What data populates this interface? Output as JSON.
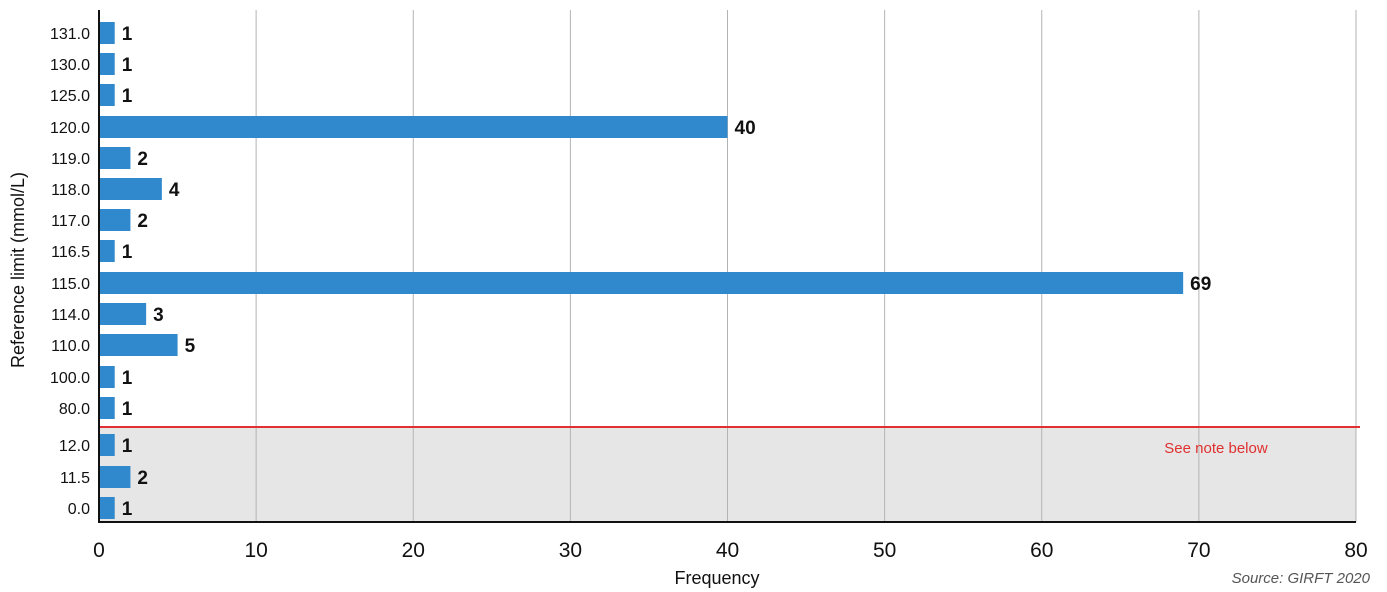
{
  "chart_data": {
    "type": "bar",
    "orientation": "horizontal",
    "xlabel": "Frequency",
    "ylabel": "Reference limit (mmol/L)",
    "xlim": [
      0,
      80
    ],
    "x_ticks": [
      0,
      10,
      20,
      30,
      40,
      50,
      60,
      70,
      80
    ],
    "grid": "vertical",
    "categories": [
      "131.0",
      "130.0",
      "125.0",
      "120.0",
      "119.0",
      "118.0",
      "117.0",
      "116.5",
      "115.0",
      "114.0",
      "110.0",
      "100.0",
      "80.0",
      "12.0",
      "11.5",
      "0.0"
    ],
    "values": [
      1,
      1,
      1,
      40,
      2,
      4,
      2,
      1,
      69,
      3,
      5,
      1,
      1,
      1,
      2,
      1
    ],
    "data_labels": [
      "1",
      "1",
      "1",
      "40",
      "2",
      "4",
      "2",
      "1",
      "69",
      "3",
      "5",
      "1",
      "1",
      "1",
      "2",
      "1"
    ],
    "shaded_categories": [
      "12.0",
      "11.5",
      "0.0"
    ],
    "annotation": "See note below",
    "source": "Source: GIRFT 2020"
  },
  "colors": {
    "bar": "#2f89cc",
    "divider_line": "#e03030",
    "shaded_region": "#e6e6e6",
    "grid": "#b3b3b3",
    "note_text": "#e03030"
  }
}
